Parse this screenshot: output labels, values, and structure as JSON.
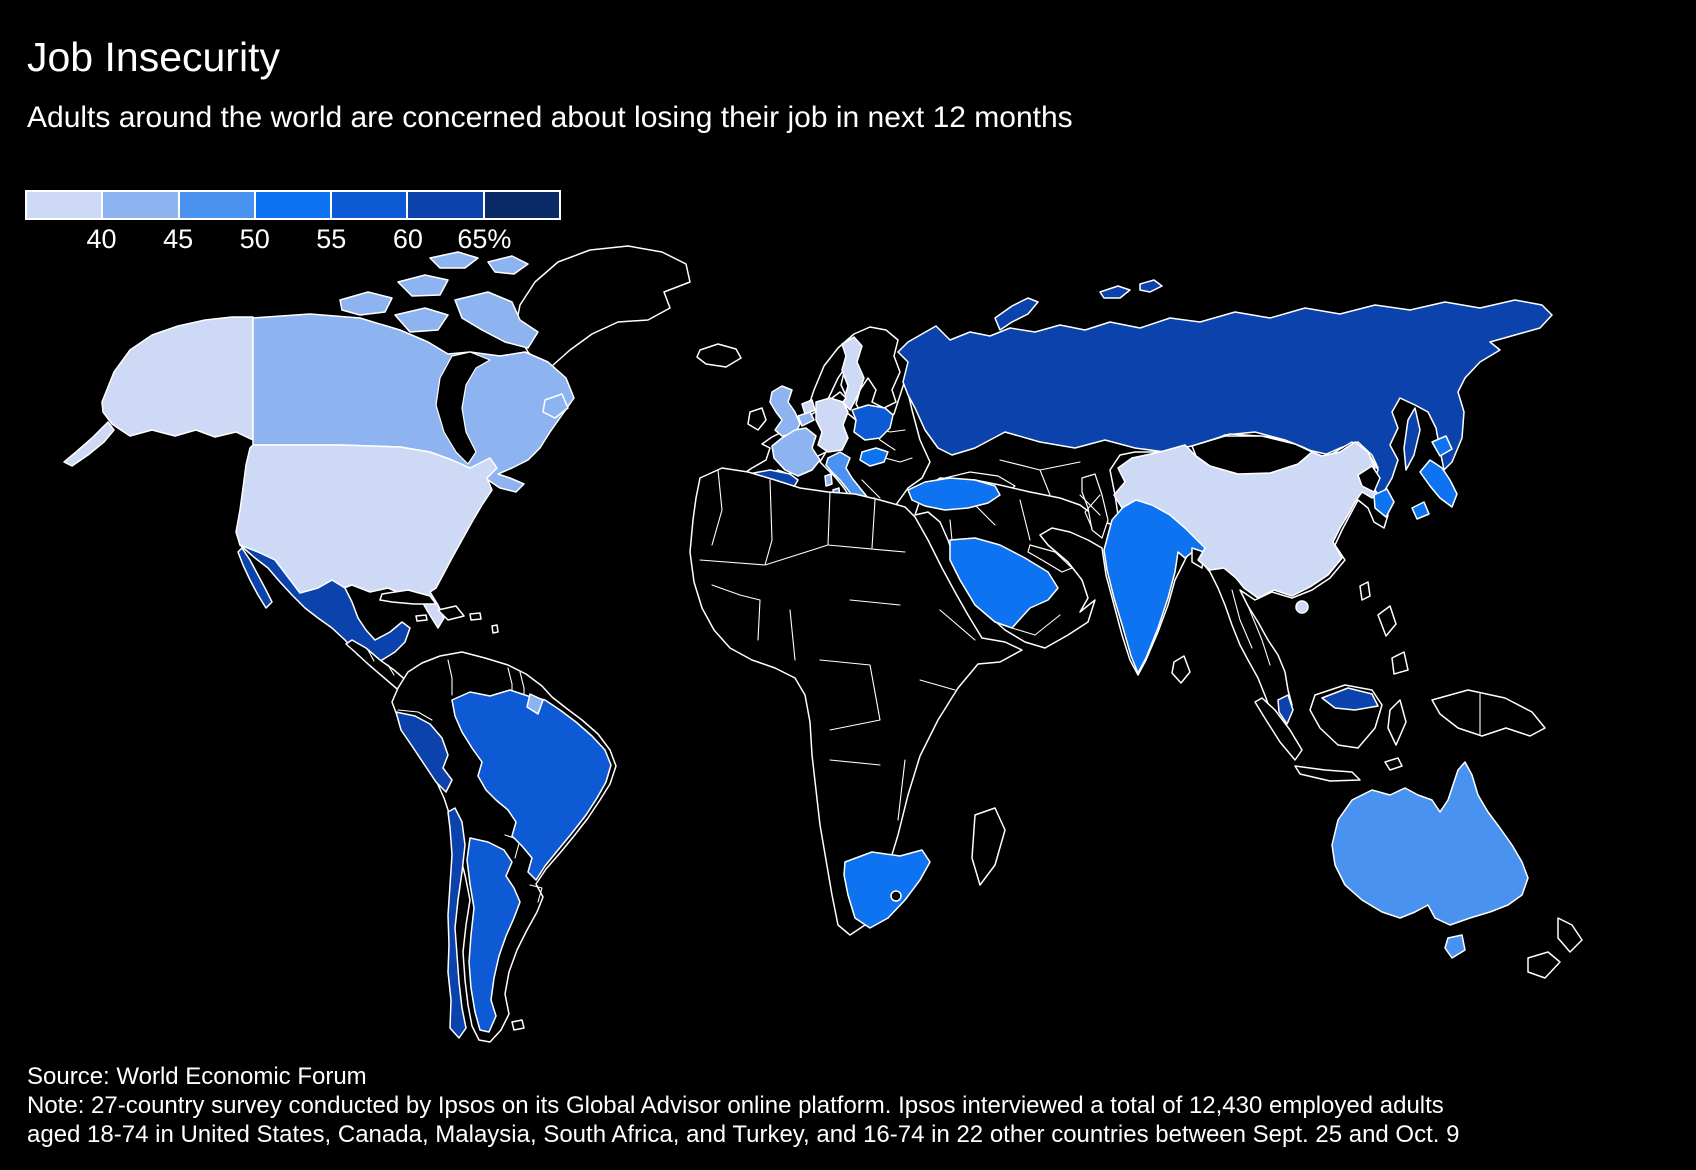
{
  "header": {
    "title": "Job Insecurity",
    "subtitle": "Adults around the world are concerned about losing their job in next 12 months"
  },
  "footer": {
    "source": "Source: World Economic Forum",
    "note_lines": [
      "Note: 27-country survey conducted by Ipsos on its Global Advisor online platform. Ipsos interviewed a total of 12,430 employed adults",
      "aged 18-74 in United States, Canada, Malaysia, South Africa, and Turkey, and 16-74 in 22 other countries between Sept. 25 and Oct. 9"
    ]
  },
  "colors": {
    "background": "#000000",
    "text": "#ffffff",
    "border": "#ffffff",
    "no_data": "#000000"
  },
  "chart_data": {
    "type": "choropleth-map",
    "title": "Job Insecurity",
    "metric": "Share of employed adults concerned about losing their job in the next 12 months (%)",
    "legend": {
      "position": "top-left",
      "ticks": [
        "40",
        "45",
        "50",
        "55",
        "60",
        "65%"
      ],
      "bucket_labels": [
        "<40",
        "40-45",
        "45-50",
        "50-55",
        "55-60",
        "60-65",
        ">65"
      ],
      "bucket_colors": [
        "#cdd9f5",
        "#8db4f0",
        "#4a92f0",
        "#0e73f0",
        "#0d5ad4",
        "#0c42ab",
        "#0a2a66"
      ],
      "no_data_color": "#000000"
    },
    "countries": [
      {
        "name": "United States",
        "slug": "united-states",
        "bucket": 0,
        "range": "<40"
      },
      {
        "name": "China",
        "slug": "china",
        "bucket": 0,
        "range": "<40"
      },
      {
        "name": "Germany",
        "slug": "germany",
        "bucket": 0,
        "range": "<40"
      },
      {
        "name": "Netherlands",
        "slug": "netherlands",
        "bucket": 0,
        "range": "<40"
      },
      {
        "name": "Sweden",
        "slug": "sweden",
        "bucket": 0,
        "range": "<40"
      },
      {
        "name": "Canada",
        "slug": "canada",
        "bucket": 1,
        "range": "40-45"
      },
      {
        "name": "United Kingdom",
        "slug": "united-kingdom",
        "bucket": 1,
        "range": "40-45"
      },
      {
        "name": "France",
        "slug": "france",
        "bucket": 1,
        "range": "40-45"
      },
      {
        "name": "Belgium",
        "slug": "belgium",
        "bucket": 1,
        "range": "40-45"
      },
      {
        "name": "Italy",
        "slug": "italy",
        "bucket": 2,
        "range": "45-50"
      },
      {
        "name": "Australia",
        "slug": "australia",
        "bucket": 2,
        "range": "45-50"
      },
      {
        "name": "Turkey",
        "slug": "turkey",
        "bucket": 3,
        "range": "50-55"
      },
      {
        "name": "Saudi Arabia",
        "slug": "saudi-arabia",
        "bucket": 3,
        "range": "50-55"
      },
      {
        "name": "India",
        "slug": "india",
        "bucket": 3,
        "range": "50-55"
      },
      {
        "name": "South Africa",
        "slug": "south-africa",
        "bucket": 3,
        "range": "50-55"
      },
      {
        "name": "Japan",
        "slug": "japan",
        "bucket": 3,
        "range": "50-55"
      },
      {
        "name": "South Korea",
        "slug": "south-korea",
        "bucket": 3,
        "range": "50-55"
      },
      {
        "name": "Hungary",
        "slug": "hungary",
        "bucket": 3,
        "range": "50-55"
      },
      {
        "name": "Brazil",
        "slug": "brazil",
        "bucket": 4,
        "range": "55-60"
      },
      {
        "name": "Argentina",
        "slug": "argentina",
        "bucket": 4,
        "range": "55-60"
      },
      {
        "name": "Poland",
        "slug": "poland",
        "bucket": 4,
        "range": "55-60"
      },
      {
        "name": "Mexico",
        "slug": "mexico",
        "bucket": 5,
        "range": "60-65"
      },
      {
        "name": "Peru",
        "slug": "peru",
        "bucket": 5,
        "range": "60-65"
      },
      {
        "name": "Chile",
        "slug": "chile",
        "bucket": 5,
        "range": "60-65"
      },
      {
        "name": "Spain",
        "slug": "spain",
        "bucket": 5,
        "range": "60-65"
      },
      {
        "name": "Russia",
        "slug": "russia",
        "bucket": 5,
        "range": "60-65"
      },
      {
        "name": "Malaysia",
        "slug": "malaysia",
        "bucket": 5,
        "range": "60-65"
      }
    ]
  }
}
